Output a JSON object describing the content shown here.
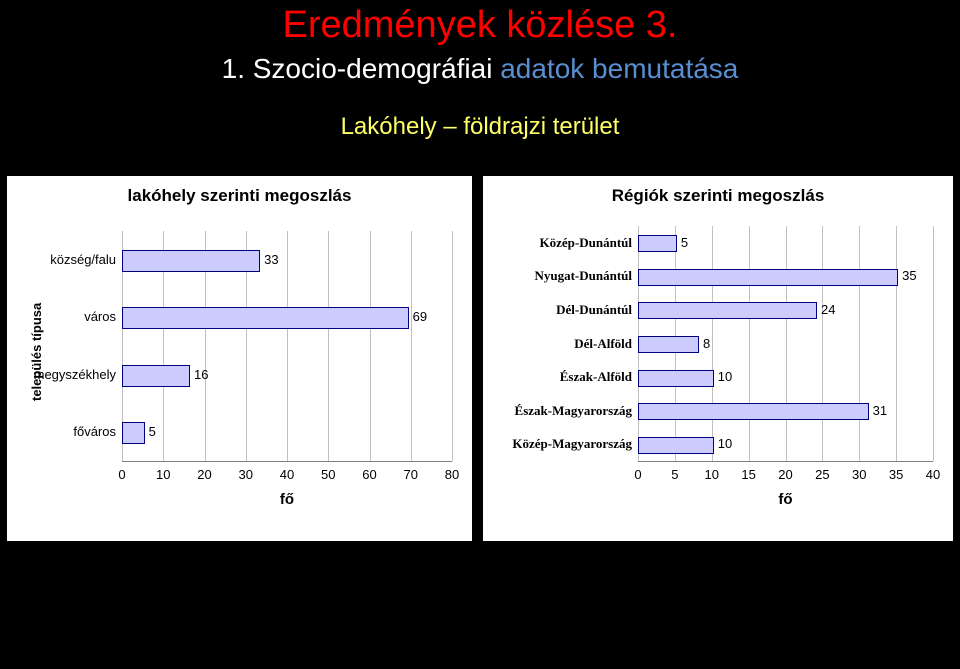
{
  "header": {
    "title": "Eredmények közlése 3.",
    "title_color": "#ff0000",
    "subtitle_a": "1. Szocio-demográfiai ",
    "subtitle_a_color": "#ffffff",
    "subtitle_b": "adatok bemutatása",
    "subtitle_b_color": "#598ed1",
    "section": "Lakóhely – földrajzi terület",
    "section_color": "#ffff66"
  },
  "left_chart": {
    "type": "horizontal_bar",
    "title": "lakóhely szerinti megoszlás",
    "y_axis_label": "település típusa",
    "x_axis_label": "fő",
    "categories": [
      "község/falu",
      "város",
      "megyszékhely",
      "főváros"
    ],
    "values": [
      33,
      69,
      16,
      5
    ],
    "bar_fill": "#ccccff",
    "bar_border": "#000080",
    "xmin": 0,
    "xmax": 80,
    "xtick_step": 10,
    "xticks": [
      0,
      10,
      20,
      30,
      40,
      50,
      60,
      70,
      80
    ],
    "background": "#ffffff",
    "grid_color": "#c0c0c0",
    "title_fontsize": 17,
    "cat_fontsize": 13,
    "tick_fontsize": 13
  },
  "right_chart": {
    "type": "horizontal_bar",
    "title": "Régiók szerinti megoszlás",
    "x_axis_label": "fő",
    "categories": [
      "Közép-Dunántúl",
      "Nyugat-Dunántúl",
      "Dél-Dunántúl",
      "Dél-Alföld",
      "Észak-Alföld",
      "Észak-Magyarország",
      "Közép-Magyarország"
    ],
    "values": [
      5,
      35,
      24,
      8,
      10,
      31,
      10
    ],
    "bar_fill": "#ccccff",
    "bar_border": "#000080",
    "xmin": 0,
    "xmax": 40,
    "xtick_step": 5,
    "xticks": [
      0,
      5,
      10,
      15,
      20,
      25,
      30,
      35,
      40
    ],
    "background": "#ffffff",
    "grid_color": "#c0c0c0",
    "title_fontsize": 17,
    "cat_fontsize": 13,
    "tick_fontsize": 13,
    "cat_font_family": "Times New Roman"
  }
}
